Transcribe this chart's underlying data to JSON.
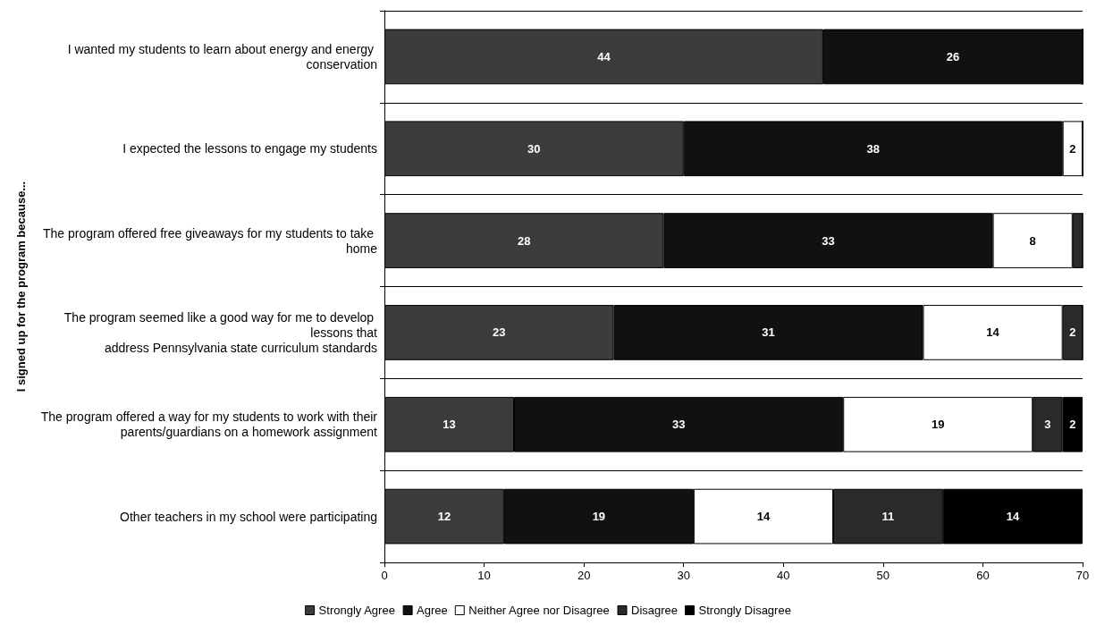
{
  "chart_data": {
    "type": "bar",
    "orientation": "horizontal",
    "stacked": true,
    "ylabel": "I signed up for the program because...",
    "categories": [
      "I wanted my students to learn about energy and energy conservation",
      "I expected the lessons to engage my students",
      "The program offered free giveaways for my students to take home",
      "The program seemed like a good way for me to develop lessons that\naddress Pennsylvania state curriculum standards",
      "The program offered a way for my students to work with their\nparents/guardians on a homework assignment",
      "Other teachers in my school were participating"
    ],
    "series": [
      {
        "name": "Strongly Agree",
        "color": "#3c3c3c",
        "values": [
          44,
          30,
          28,
          23,
          13,
          12
        ],
        "value_labels": [
          "44",
          "30",
          "28",
          "23",
          "13",
          "12"
        ]
      },
      {
        "name": "Agree",
        "color": "#111111",
        "values": [
          26,
          38,
          33,
          31,
          33,
          19
        ],
        "value_labels": [
          "26",
          "38",
          "33",
          "31",
          "33",
          "19"
        ]
      },
      {
        "name": "Neither Agree nor Disagree",
        "color": "#ffffff",
        "values": [
          0,
          2,
          8,
          14,
          19,
          14
        ],
        "value_labels": [
          null,
          "2",
          "8",
          "14",
          "19",
          "14"
        ]
      },
      {
        "name": "Disagree",
        "color": "#2a2a2a",
        "values": [
          0,
          0,
          1,
          2,
          3,
          11
        ],
        "value_labels": [
          null,
          null,
          null,
          "2",
          "3",
          "11"
        ]
      },
      {
        "name": "Strongly Disagree",
        "color": "#000000",
        "values": [
          0,
          0,
          0,
          0,
          2,
          14
        ],
        "value_labels": [
          null,
          null,
          null,
          null,
          "2",
          "14"
        ]
      }
    ],
    "xlim": [
      0,
      70
    ],
    "xticks": [
      0,
      10,
      20,
      30,
      40,
      50,
      60,
      70
    ],
    "grid": false,
    "legend": "bottom"
  }
}
